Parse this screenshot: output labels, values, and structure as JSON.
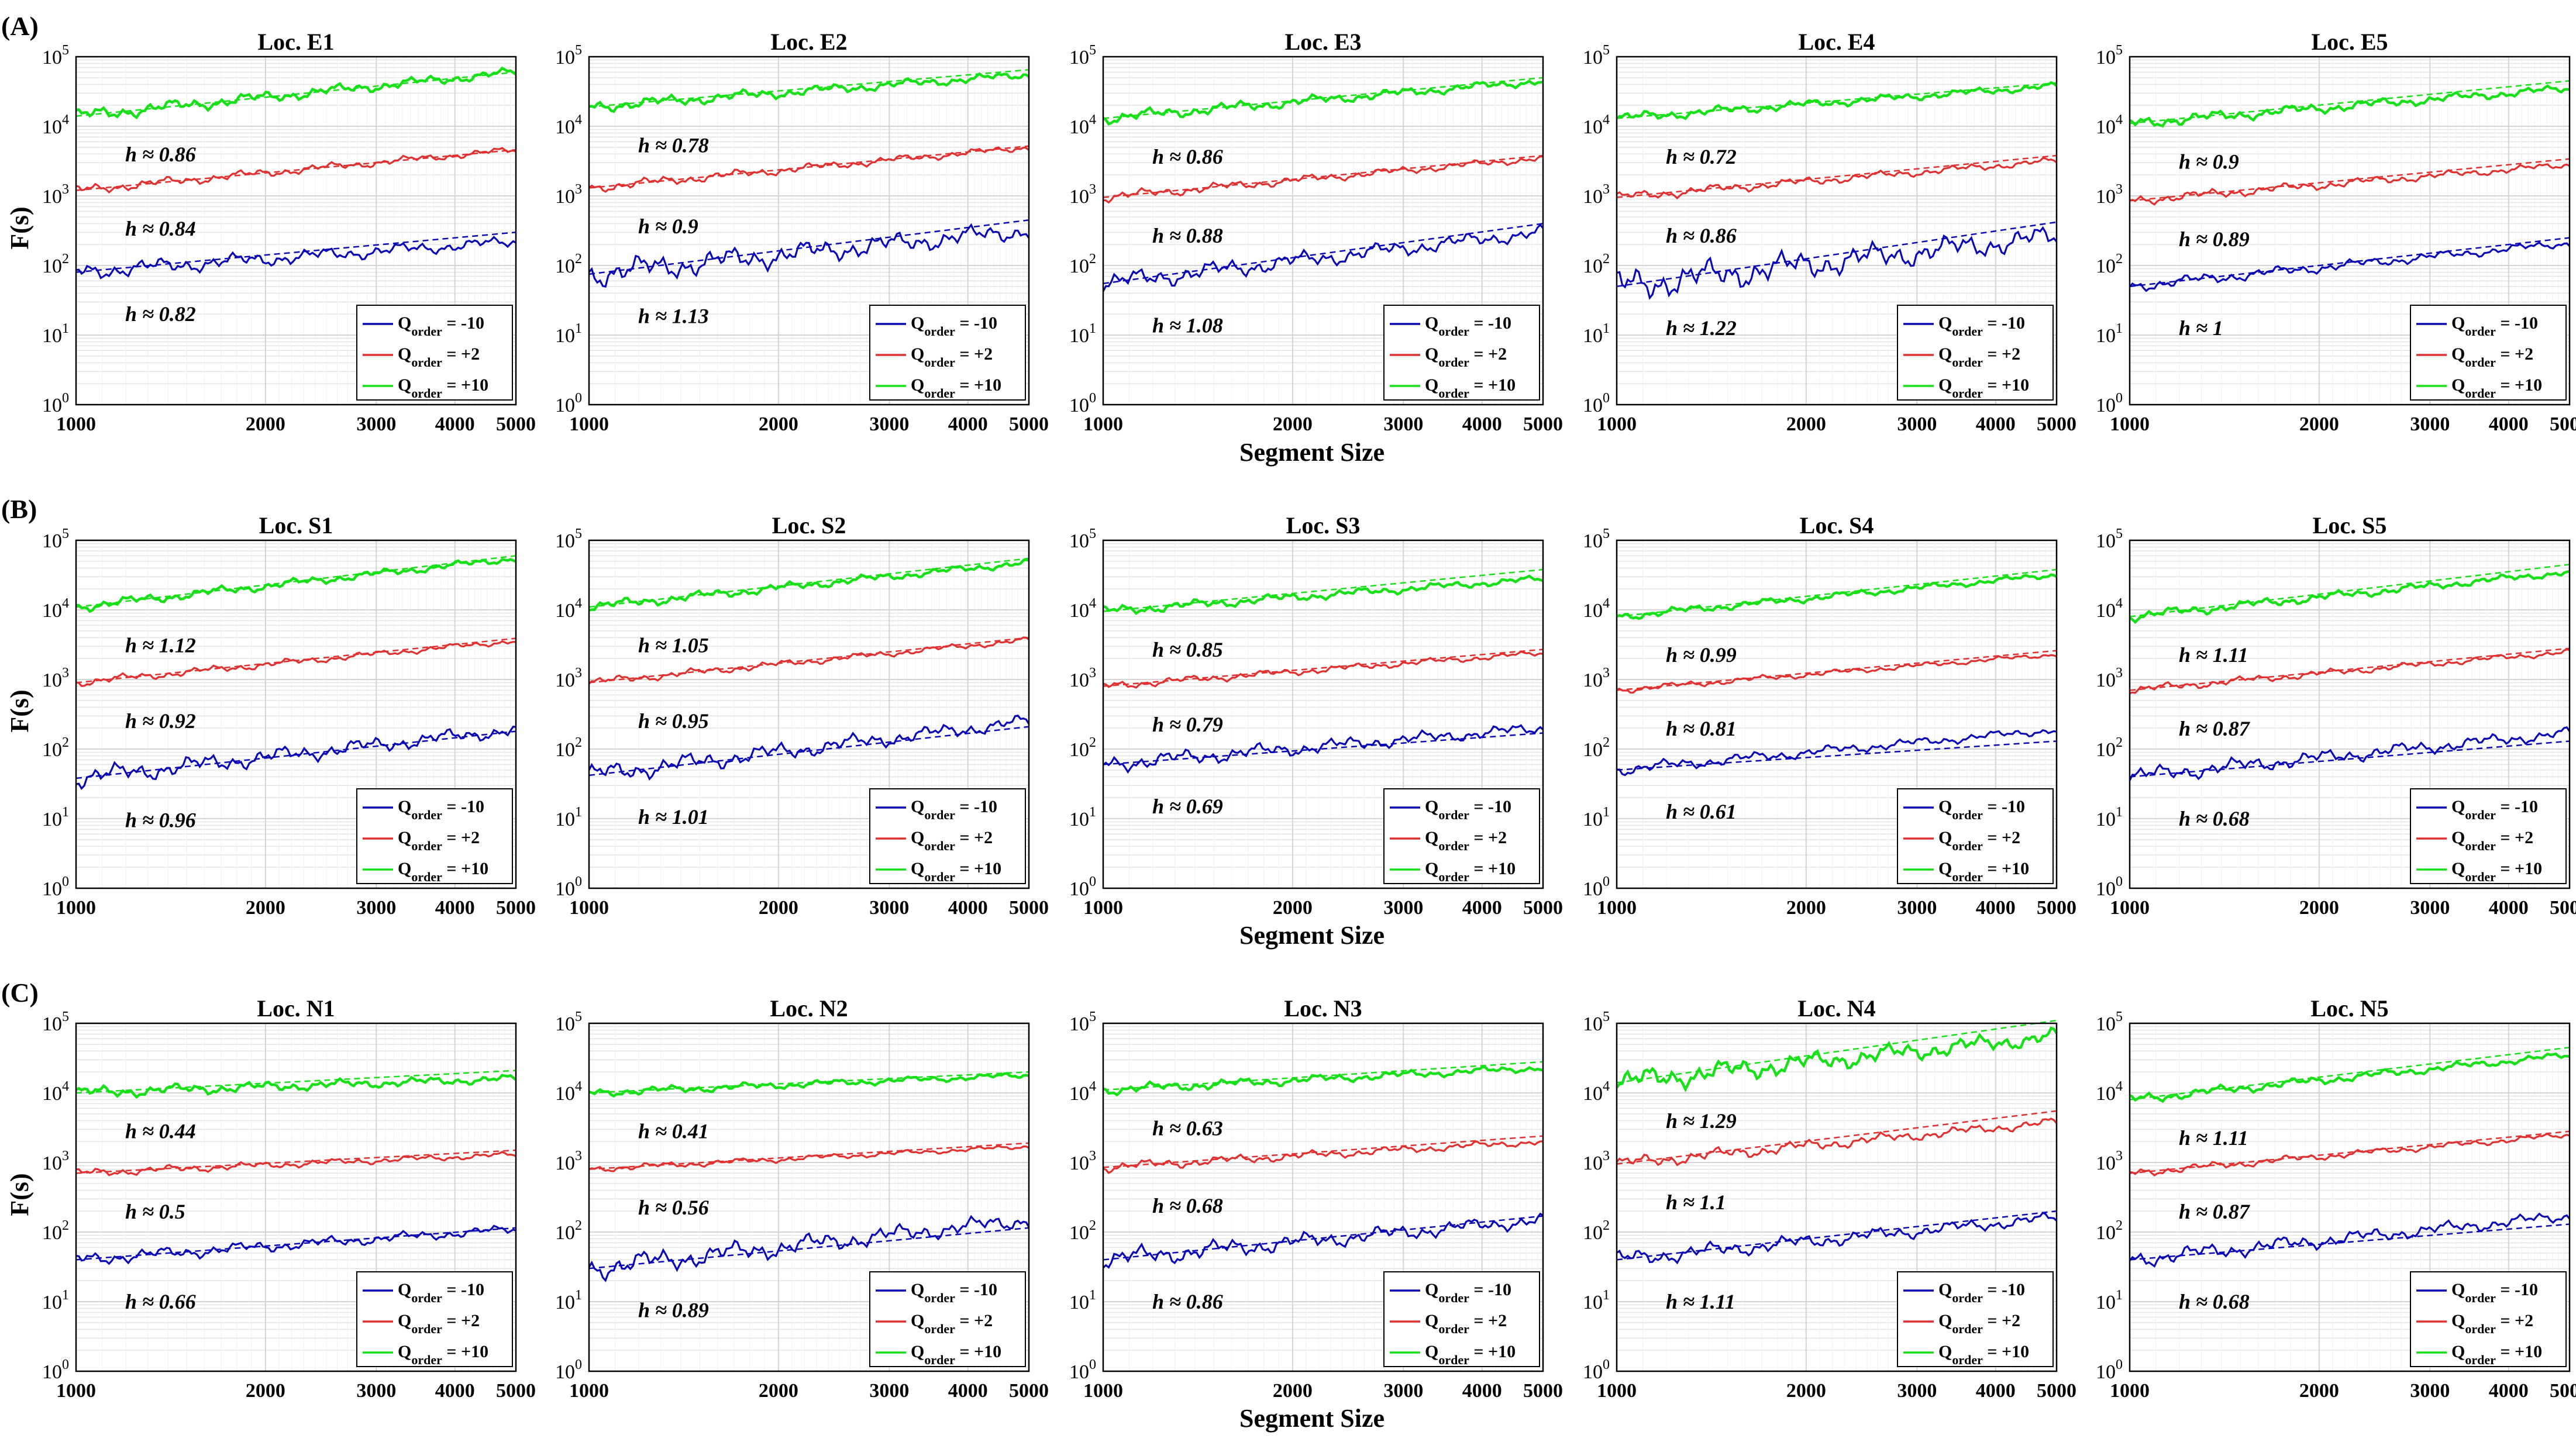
{
  "figure": {
    "row_labels": [
      "(A)",
      "(B)",
      "(C)"
    ],
    "ylabel": "F(s)",
    "xlabel": "Segment Size"
  },
  "chart_data": [
    {
      "type": "line",
      "title": "Loc. E1",
      "h": {
        "q_neg10": "h ≈ 0.82",
        "q_pos2": "h ≈ 0.84",
        "q_pos10": "h ≈ 0.86"
      },
      "series": [
        {
          "name": "Q_order = -10",
          "start": 80,
          "end": 220,
          "fit_end": 300,
          "noise": 0.1
        },
        {
          "name": "Q_order = +2",
          "start": 1200,
          "end": 4600,
          "fit_end": 4600,
          "noise": 0.06
        },
        {
          "name": "Q_order = +10",
          "start": 14000,
          "end": 60000,
          "fit_end": 60000,
          "noise": 0.08
        }
      ]
    },
    {
      "type": "line",
      "title": "Loc. E2",
      "h": {
        "q_neg10": "h ≈ 1.13",
        "q_pos2": "h ≈ 0.9",
        "q_pos10": "h ≈ 0.78"
      },
      "series": [
        {
          "name": "Q_order = -10",
          "start": 75,
          "end": 320,
          "fit_end": 450,
          "noise": 0.16
        },
        {
          "name": "Q_order = +2",
          "start": 1300,
          "end": 5000,
          "fit_end": 5200,
          "noise": 0.06
        },
        {
          "name": "Q_order = +10",
          "start": 19000,
          "end": 55000,
          "fit_end": 65000,
          "noise": 0.07
        }
      ]
    },
    {
      "type": "line",
      "title": "Loc. E3",
      "h": {
        "q_neg10": "h ≈ 1.08",
        "q_pos2": "h ≈ 0.88",
        "q_pos10": "h ≈ 0.86"
      },
      "series": [
        {
          "name": "Q_order = -10",
          "start": 55,
          "end": 300,
          "fit_end": 400,
          "noise": 0.12
        },
        {
          "name": "Q_order = +2",
          "start": 950,
          "end": 3500,
          "fit_end": 3800,
          "noise": 0.06
        },
        {
          "name": "Q_order = +10",
          "start": 13000,
          "end": 45000,
          "fit_end": 50000,
          "noise": 0.07
        }
      ]
    },
    {
      "type": "line",
      "title": "Loc. E4",
      "h": {
        "q_neg10": "h ≈ 1.22",
        "q_pos2": "h ≈ 0.86",
        "q_pos10": "h ≈ 0.72"
      },
      "series": [
        {
          "name": "Q_order = -10",
          "start": 50,
          "end": 260,
          "fit_end": 420,
          "noise": 0.2
        },
        {
          "name": "Q_order = +2",
          "start": 950,
          "end": 3200,
          "fit_end": 3800,
          "noise": 0.06
        },
        {
          "name": "Q_order = +10",
          "start": 13000,
          "end": 38000,
          "fit_end": 42000,
          "noise": 0.06
        }
      ]
    },
    {
      "type": "line",
      "title": "Loc. E5",
      "h": {
        "q_neg10": "h ≈ 1",
        "q_pos2": "h ≈ 0.89",
        "q_pos10": "h ≈ 0.9"
      },
      "series": [
        {
          "name": "Q_order = -10",
          "start": 50,
          "end": 210,
          "fit_end": 250,
          "noise": 0.07
        },
        {
          "name": "Q_order = +2",
          "start": 850,
          "end": 2800,
          "fit_end": 3400,
          "noise": 0.06
        },
        {
          "name": "Q_order = +10",
          "start": 11000,
          "end": 35000,
          "fit_end": 45000,
          "noise": 0.07
        }
      ]
    },
    {
      "type": "line",
      "title": "Loc. S1",
      "h": {
        "q_neg10": "h ≈ 0.96",
        "q_pos2": "h ≈ 0.92",
        "q_pos10": "h ≈ 1.12"
      },
      "series": [
        {
          "name": "Q_order = -10",
          "start": 38,
          "end": 190,
          "fit_end": 180,
          "noise": 0.12
        },
        {
          "name": "Q_order = +2",
          "start": 900,
          "end": 3600,
          "fit_end": 3900,
          "noise": 0.05
        },
        {
          "name": "Q_order = +10",
          "start": 11000,
          "end": 55000,
          "fit_end": 60000,
          "noise": 0.06
        }
      ]
    },
    {
      "type": "line",
      "title": "Loc. S2",
      "h": {
        "q_neg10": "h ≈ 1.01",
        "q_pos2": "h ≈ 0.95",
        "q_pos10": "h ≈ 1.05"
      },
      "series": [
        {
          "name": "Q_order = -10",
          "start": 42,
          "end": 250,
          "fit_end": 210,
          "noise": 0.12
        },
        {
          "name": "Q_order = +2",
          "start": 900,
          "end": 3700,
          "fit_end": 4000,
          "noise": 0.05
        },
        {
          "name": "Q_order = +10",
          "start": 11000,
          "end": 48000,
          "fit_end": 55000,
          "noise": 0.06
        }
      ]
    },
    {
      "type": "line",
      "title": "Loc. S3",
      "h": {
        "q_neg10": "h ≈ 0.69",
        "q_pos2": "h ≈ 0.79",
        "q_pos10": "h ≈ 0.85"
      },
      "series": [
        {
          "name": "Q_order = -10",
          "start": 60,
          "end": 200,
          "fit_end": 170,
          "noise": 0.1
        },
        {
          "name": "Q_order = +2",
          "start": 800,
          "end": 2400,
          "fit_end": 2700,
          "noise": 0.05
        },
        {
          "name": "Q_order = +10",
          "start": 9500,
          "end": 28000,
          "fit_end": 38000,
          "noise": 0.06
        }
      ]
    },
    {
      "type": "line",
      "title": "Loc. S4",
      "h": {
        "q_neg10": "h ≈ 0.61",
        "q_pos2": "h ≈ 0.81",
        "q_pos10": "h ≈ 0.99"
      },
      "series": [
        {
          "name": "Q_order = -10",
          "start": 50,
          "end": 190,
          "fit_end": 130,
          "noise": 0.07
        },
        {
          "name": "Q_order = +2",
          "start": 700,
          "end": 2300,
          "fit_end": 2600,
          "noise": 0.04
        },
        {
          "name": "Q_order = +10",
          "start": 8000,
          "end": 32000,
          "fit_end": 38000,
          "noise": 0.05
        }
      ]
    },
    {
      "type": "line",
      "title": "Loc. S5",
      "h": {
        "q_neg10": "h ≈ 0.68",
        "q_pos2": "h ≈ 0.87",
        "q_pos10": "h ≈ 1.11"
      },
      "series": [
        {
          "name": "Q_order = -10",
          "start": 40,
          "end": 170,
          "fit_end": 130,
          "noise": 0.1
        },
        {
          "name": "Q_order = +2",
          "start": 700,
          "end": 2500,
          "fit_end": 2800,
          "noise": 0.05
        },
        {
          "name": "Q_order = +10",
          "start": 8000,
          "end": 35000,
          "fit_end": 45000,
          "noise": 0.06
        }
      ]
    },
    {
      "type": "line",
      "title": "Loc. N1",
      "h": {
        "q_neg10": "h ≈ 0.66",
        "q_pos2": "h ≈ 0.5",
        "q_pos10": "h ≈ 0.44"
      },
      "series": [
        {
          "name": "Q_order = -10",
          "start": 40,
          "end": 110,
          "fit_end": 115,
          "noise": 0.08
        },
        {
          "name": "Q_order = +2",
          "start": 700,
          "end": 1300,
          "fit_end": 1500,
          "noise": 0.05
        },
        {
          "name": "Q_order = +10",
          "start": 10000,
          "end": 16000,
          "fit_end": 21000,
          "noise": 0.07
        }
      ]
    },
    {
      "type": "line",
      "title": "Loc. N2",
      "h": {
        "q_neg10": "h ≈ 0.89",
        "q_pos2": "h ≈ 0.56",
        "q_pos10": "h ≈ 0.41"
      },
      "series": [
        {
          "name": "Q_order = -10",
          "start": 30,
          "end": 150,
          "fit_end": 115,
          "noise": 0.14
        },
        {
          "name": "Q_order = +2",
          "start": 800,
          "end": 1700,
          "fit_end": 1900,
          "noise": 0.04
        },
        {
          "name": "Q_order = +10",
          "start": 10000,
          "end": 18000,
          "fit_end": 20000,
          "noise": 0.05
        }
      ]
    },
    {
      "type": "line",
      "title": "Loc. N3",
      "h": {
        "q_neg10": "h ≈ 0.86",
        "q_pos2": "h ≈ 0.68",
        "q_pos10": "h ≈ 0.63"
      },
      "series": [
        {
          "name": "Q_order = -10",
          "start": 40,
          "end": 150,
          "fit_end": 170,
          "noise": 0.12
        },
        {
          "name": "Q_order = +2",
          "start": 850,
          "end": 2000,
          "fit_end": 2400,
          "noise": 0.06
        },
        {
          "name": "Q_order = +10",
          "start": 11000,
          "end": 23000,
          "fit_end": 28000,
          "noise": 0.06
        }
      ]
    },
    {
      "type": "line",
      "title": "Loc. N4",
      "h": {
        "q_neg10": "h ≈ 1.11",
        "q_pos2": "h ≈ 1.1",
        "q_pos10": "h ≈ 1.29"
      },
      "series": [
        {
          "name": "Q_order = -10",
          "start": 40,
          "end": 160,
          "fit_end": 200,
          "noise": 0.1
        },
        {
          "name": "Q_order = +2",
          "start": 950,
          "end": 3800,
          "fit_end": 5500,
          "noise": 0.08
        },
        {
          "name": "Q_order = +10",
          "start": 14000,
          "end": 65000,
          "fit_end": 110000,
          "noise": 0.14
        }
      ]
    },
    {
      "type": "line",
      "title": "Loc. N5",
      "h": {
        "q_neg10": "h ≈ 0.68",
        "q_pos2": "h ≈ 0.87",
        "q_pos10": "h ≈ 1.11"
      },
      "series": [
        {
          "name": "Q_order = -10",
          "start": 40,
          "end": 170,
          "fit_end": 130,
          "noise": 0.1
        },
        {
          "name": "Q_order = +2",
          "start": 700,
          "end": 2500,
          "fit_end": 2800,
          "noise": 0.05
        },
        {
          "name": "Q_order = +10",
          "start": 8000,
          "end": 35000,
          "fit_end": 45000,
          "noise": 0.06
        }
      ]
    }
  ],
  "axes": {
    "x_scale": "log",
    "y_scale": "log",
    "xlim": [
      1000,
      5000
    ],
    "ylim": [
      1,
      100000
    ],
    "x_ticks": [
      1000,
      2000,
      3000,
      4000,
      5000
    ],
    "y_ticks": [
      1,
      10,
      100,
      1000,
      10000,
      100000
    ],
    "grid": true,
    "legend_position": "lower-right"
  },
  "legend_labels": [
    {
      "base": "Q",
      "sub": "order",
      "rest": " = -10"
    },
    {
      "base": "Q",
      "sub": "order",
      "rest": " = +2"
    },
    {
      "base": "Q",
      "sub": "order",
      "rest": " = +10"
    }
  ],
  "colors": {
    "q_neg10": "#0a0ab4",
    "q_pos2": "#e03030",
    "q_pos10": "#18e018",
    "axis": "#000000",
    "grid": "#d4d4d4"
  }
}
